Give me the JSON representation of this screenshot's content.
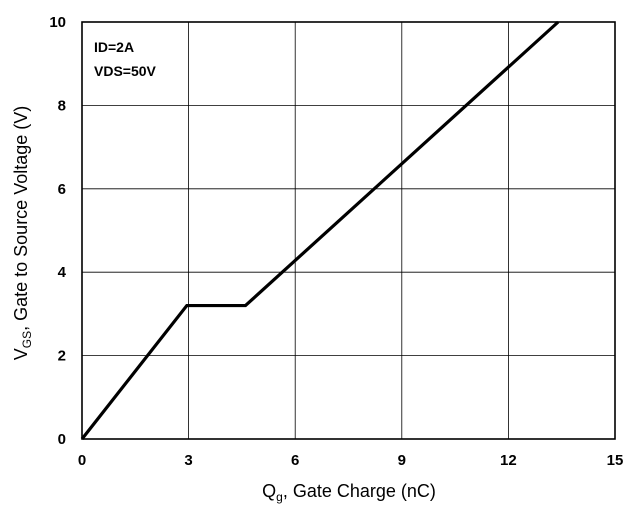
{
  "chart_data": {
    "type": "line",
    "title": "",
    "xlabel": {
      "main": "Q",
      "sub": "g",
      "rest": ", Gate Charge (nC)"
    },
    "ylabel": {
      "main": "V",
      "sub": "GS",
      "rest": ", Gate to Source Voltage (V)"
    },
    "xlim": [
      0,
      15
    ],
    "ylim": [
      0,
      10
    ],
    "xticks": [
      0,
      3,
      6,
      9,
      12,
      15
    ],
    "yticks": [
      0,
      2,
      4,
      6,
      8,
      10
    ],
    "grid": true,
    "annotations": [
      "ID=2A",
      "VDS=50V"
    ],
    "series": [
      {
        "x": [
          0,
          2.95,
          4.6,
          13.4
        ],
        "y": [
          0,
          3.2,
          3.2,
          10
        ],
        "color": "#000000"
      }
    ]
  }
}
